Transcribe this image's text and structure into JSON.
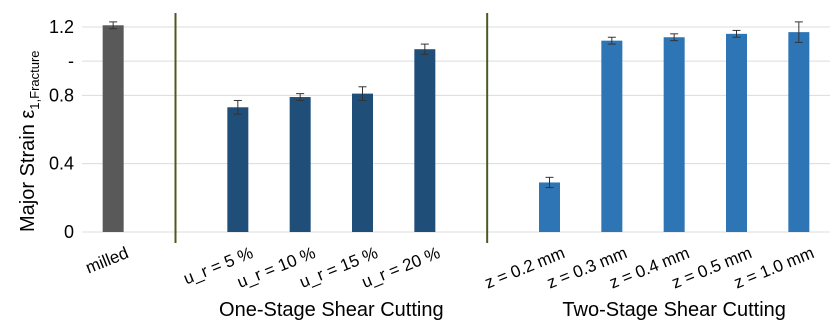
{
  "chart_data": {
    "type": "bar",
    "ylabel": "Major Strain ε",
    "ylabel_sub": "1,Fracture",
    "ylim": [
      0,
      1.3
    ],
    "yticks": [
      {
        "value": 0,
        "label": "0"
      },
      {
        "value": 0.4,
        "label": "0.4"
      },
      {
        "value": 0.8,
        "label": "0.8"
      },
      {
        "value": 1.0,
        "label": "-"
      },
      {
        "value": 1.2,
        "label": "1.2"
      }
    ],
    "grid": true,
    "categories": [
      {
        "label": "milled",
        "value": 1.21,
        "err": 0.02,
        "color": "#595959"
      },
      {
        "label": "",
        "value": null,
        "err": null,
        "color": null
      },
      {
        "label": "u_r = 5 %",
        "value": 0.73,
        "err": 0.04,
        "color": "#1f4e79"
      },
      {
        "label": "u_r = 10 %",
        "value": 0.79,
        "err": 0.02,
        "color": "#1f4e79"
      },
      {
        "label": "u_r = 15 %",
        "value": 0.81,
        "err": 0.04,
        "color": "#1f4e79"
      },
      {
        "label": "u_r = 20 %",
        "value": 1.07,
        "err": 0.03,
        "color": "#1f4e79"
      },
      {
        "label": "",
        "value": null,
        "err": null,
        "color": null
      },
      {
        "label": "z = 0.2 mm",
        "value": 0.29,
        "err": 0.03,
        "color": "#2e75b6"
      },
      {
        "label": "z = 0.3 mm",
        "value": 1.12,
        "err": 0.02,
        "color": "#2e75b6"
      },
      {
        "label": "z = 0.4 mm",
        "value": 1.14,
        "err": 0.02,
        "color": "#2e75b6"
      },
      {
        "label": "z = 0.5 mm",
        "value": 1.16,
        "err": 0.02,
        "color": "#2e75b6"
      },
      {
        "label": "z = 1.0 mm",
        "value": 1.17,
        "err": 0.06,
        "color": "#2e75b6"
      }
    ],
    "groups": [
      {
        "label": "One-Stage Shear Cutting"
      },
      {
        "label": "Two-Stage Shear Cutting"
      }
    ],
    "separator_color": "#4d5a1e"
  }
}
